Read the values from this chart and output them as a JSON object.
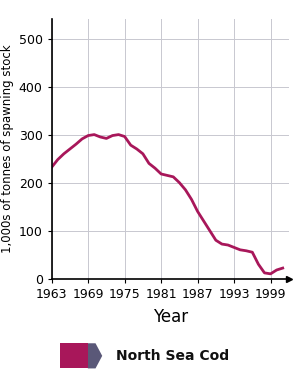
{
  "years": [
    1963,
    1964,
    1965,
    1966,
    1967,
    1968,
    1969,
    1970,
    1971,
    1972,
    1973,
    1974,
    1975,
    1976,
    1977,
    1978,
    1979,
    1980,
    1981,
    1982,
    1983,
    1984,
    1985,
    1986,
    1987,
    1988,
    1989,
    1990,
    1991,
    1992,
    1993,
    1994,
    1995,
    1996,
    1997,
    1998,
    1999,
    2000,
    2001
  ],
  "values": [
    232,
    248,
    260,
    270,
    280,
    291,
    298,
    300,
    295,
    292,
    298,
    300,
    296,
    278,
    270,
    260,
    240,
    230,
    218,
    215,
    212,
    200,
    185,
    165,
    140,
    120,
    100,
    80,
    72,
    70,
    65,
    60,
    58,
    55,
    30,
    12,
    10,
    18,
    22
  ],
  "line_color": "#a8175a",
  "line_width": 2.0,
  "ylabel": "1,000s of tonnes of spawning stock",
  "xlabel": "Year",
  "yticks": [
    0,
    100,
    200,
    300,
    400,
    500
  ],
  "xticks": [
    1963,
    1969,
    1975,
    1981,
    1987,
    1993,
    1999
  ],
  "xlim": [
    1963,
    2002
  ],
  "ylim": [
    0,
    540
  ],
  "grid_color": "#c8c8d0",
  "legend_label": "North Sea Cod",
  "legend_box_color": "#a8175a",
  "legend_arrow_color": "#5a5878",
  "legend_bg_color": "#d8daea",
  "background_color": "#ffffff",
  "axis_color": "#000000",
  "ylabel_fontsize": 8.5,
  "xlabel_fontsize": 12,
  "tick_fontsize": 9
}
